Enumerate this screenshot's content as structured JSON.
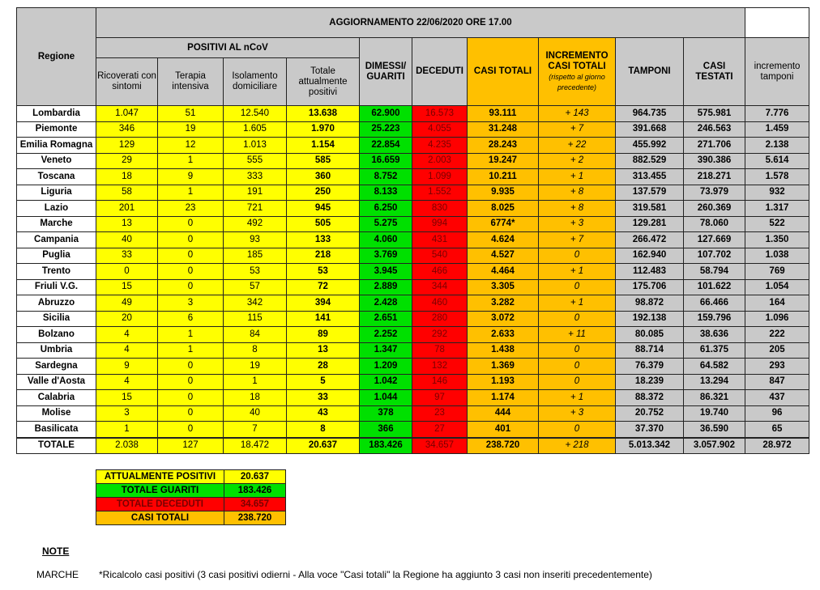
{
  "title": "AGGIORNAMENTO 22/06/2020 ORE 17.00",
  "headers": {
    "regione": "Regione",
    "positivi_group": "POSITIVI AL nCoV",
    "ricoverati": "Ricoverati con sintomi",
    "terapia": "Terapia intensiva",
    "isolamento": "Isolamento domiciliare",
    "totale_positivi": "Totale attualmente positivi",
    "dimessi": "DIMESSI/ GUARITI",
    "deceduti": "DECEDUTI",
    "casi_totali": "CASI TOTALI",
    "incremento": "INCREMENTO CASI TOTALI",
    "incremento_note": "(rispetto al giorno precedente)",
    "tamponi": "TAMPONI",
    "casi_testati": "CASI TESTATI",
    "incremento_tamponi": "incremento tamponi"
  },
  "rows": [
    [
      "Lombardia",
      "1.047",
      "51",
      "12.540",
      "13.638",
      "62.900",
      "16.573",
      "93.111",
      "+ 143",
      "964.735",
      "575.981",
      "7.776"
    ],
    [
      "Piemonte",
      "346",
      "19",
      "1.605",
      "1.970",
      "25.223",
      "4.055",
      "31.248",
      "+ 7",
      "391.668",
      "246.563",
      "1.459"
    ],
    [
      "Emilia Romagna",
      "129",
      "12",
      "1.013",
      "1.154",
      "22.854",
      "4.235",
      "28.243",
      "+ 22",
      "455.992",
      "271.706",
      "2.138"
    ],
    [
      "Veneto",
      "29",
      "1",
      "555",
      "585",
      "16.659",
      "2.003",
      "19.247",
      "+ 2",
      "882.529",
      "390.386",
      "5.614"
    ],
    [
      "Toscana",
      "18",
      "9",
      "333",
      "360",
      "8.752",
      "1.099",
      "10.211",
      "+ 1",
      "313.455",
      "218.271",
      "1.578"
    ],
    [
      "Liguria",
      "58",
      "1",
      "191",
      "250",
      "8.133",
      "1.552",
      "9.935",
      "+ 8",
      "137.579",
      "73.979",
      "932"
    ],
    [
      "Lazio",
      "201",
      "23",
      "721",
      "945",
      "6.250",
      "830",
      "8.025",
      "+ 8",
      "319.581",
      "260.369",
      "1.317"
    ],
    [
      "Marche",
      "13",
      "0",
      "492",
      "505",
      "5.275",
      "994",
      "6774*",
      "+ 3",
      "129.281",
      "78.060",
      "522"
    ],
    [
      "Campania",
      "40",
      "0",
      "93",
      "133",
      "4.060",
      "431",
      "4.624",
      "+ 7",
      "266.472",
      "127.669",
      "1.350"
    ],
    [
      "Puglia",
      "33",
      "0",
      "185",
      "218",
      "3.769",
      "540",
      "4.527",
      "0",
      "162.940",
      "107.702",
      "1.038"
    ],
    [
      "Trento",
      "0",
      "0",
      "53",
      "53",
      "3.945",
      "466",
      "4.464",
      "+ 1",
      "112.483",
      "58.794",
      "769"
    ],
    [
      "Friuli V.G.",
      "15",
      "0",
      "57",
      "72",
      "2.889",
      "344",
      "3.305",
      "0",
      "175.706",
      "101.622",
      "1.054"
    ],
    [
      "Abruzzo",
      "49",
      "3",
      "342",
      "394",
      "2.428",
      "460",
      "3.282",
      "+ 1",
      "98.872",
      "66.466",
      "164"
    ],
    [
      "Sicilia",
      "20",
      "6",
      "115",
      "141",
      "2.651",
      "280",
      "3.072",
      "0",
      "192.138",
      "159.796",
      "1.096"
    ],
    [
      "Bolzano",
      "4",
      "1",
      "84",
      "89",
      "2.252",
      "292",
      "2.633",
      "+ 11",
      "80.085",
      "38.636",
      "222"
    ],
    [
      "Umbria",
      "4",
      "1",
      "8",
      "13",
      "1.347",
      "78",
      "1.438",
      "0",
      "88.714",
      "61.375",
      "205"
    ],
    [
      "Sardegna",
      "9",
      "0",
      "19",
      "28",
      "1.209",
      "132",
      "1.369",
      "0",
      "76.379",
      "64.582",
      "293"
    ],
    [
      "Valle d'Aosta",
      "4",
      "0",
      "1",
      "5",
      "1.042",
      "146",
      "1.193",
      "0",
      "18.239",
      "13.294",
      "847"
    ],
    [
      "Calabria",
      "15",
      "0",
      "18",
      "33",
      "1.044",
      "97",
      "1.174",
      "+ 1",
      "88.372",
      "86.321",
      "437"
    ],
    [
      "Molise",
      "3",
      "0",
      "40",
      "43",
      "378",
      "23",
      "444",
      "+ 3",
      "20.752",
      "19.740",
      "96"
    ],
    [
      "Basilicata",
      "1",
      "0",
      "7",
      "8",
      "366",
      "27",
      "401",
      "0",
      "37.370",
      "36.590",
      "65"
    ]
  ],
  "totals": [
    "TOTALE",
    "2.038",
    "127",
    "18.472",
    "20.637",
    "183.426",
    "34.657",
    "238.720",
    "+ 218",
    "5.013.342",
    "3.057.902",
    "28.972"
  ],
  "summary": [
    {
      "label": "ATTUALMENTE POSITIVI",
      "value": "20.637",
      "color": "#ffff00"
    },
    {
      "label": "TOTALE GUARITI",
      "value": "183.426",
      "color": "#00e000"
    },
    {
      "label": "TOTALE DECEDUTI",
      "value": "34.657",
      "color": "#ff0000"
    },
    {
      "label": "CASI TOTALI",
      "value": "238.720",
      "color": "#ffc000"
    }
  ],
  "notes": {
    "title": "NOTE",
    "region": "MARCHE",
    "text": "*Ricalcolo casi positivi (3 casi positivi odierni - Alla voce \"Casi totali\" la Regione ha  aggiunto 3 casi non inseriti precedentemente)"
  },
  "colors": {
    "positivi": "#ffff00",
    "guariti": "#00e000",
    "deceduti": "#ff0000",
    "casi": "#ffc000",
    "tamponi": "#c9c9c9"
  }
}
